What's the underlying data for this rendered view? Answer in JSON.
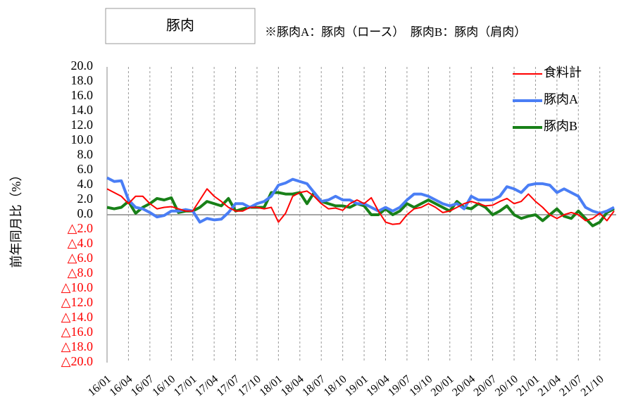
{
  "chart_data": {
    "type": "line",
    "title": "豚肉",
    "subtitle": "※豚肉A：豚肉（ロース）　豚肉B：豚肉（肩肉）",
    "y_label": "前年同月比（%）",
    "categories": [
      "16/01",
      null,
      null,
      "16/04",
      null,
      null,
      "16/07",
      null,
      null,
      "16/10",
      null,
      null,
      "17/01",
      null,
      null,
      "17/04",
      null,
      null,
      "17/07",
      null,
      null,
      "17/10",
      null,
      null,
      "18/01",
      null,
      null,
      "18/04",
      null,
      null,
      "18/07",
      null,
      null,
      "18/10",
      null,
      null,
      "19/01",
      null,
      null,
      "19/04",
      null,
      null,
      "19/07",
      null,
      null,
      "19/10",
      null,
      null,
      "20/01",
      null,
      null,
      "20/04",
      null,
      null,
      "20/07",
      null,
      null,
      "20/10",
      null,
      null,
      "21/01",
      null,
      null,
      "21/04",
      null,
      null,
      "21/07",
      null,
      null,
      "21/10",
      null,
      null
    ],
    "series": [
      {
        "name": "食料計",
        "color": "#ff0000",
        "width": 2,
        "values": [
          3.5,
          3.0,
          2.5,
          1.5,
          2.5,
          2.5,
          1.5,
          0.8,
          1.0,
          1.1,
          0.8,
          0.5,
          0.5,
          2.0,
          3.5,
          2.5,
          1.8,
          1.0,
          0.5,
          0.5,
          1.0,
          1.0,
          0.8,
          1.0,
          -1.0,
          0.2,
          2.5,
          3.0,
          3.2,
          2.5,
          1.5,
          0.8,
          0.9,
          0.6,
          1.5,
          2.0,
          1.5,
          2.3,
          0.5,
          -1.0,
          -1.3,
          -1.2,
          0.0,
          0.8,
          1.0,
          1.5,
          1.0,
          0.3,
          0.5,
          1.0,
          1.5,
          1.8,
          1.5,
          1.2,
          1.3,
          1.8,
          2.2,
          1.5,
          1.8,
          2.8,
          1.8,
          1.0,
          0.0,
          -0.5,
          0.0,
          0.3,
          0.0,
          -0.8,
          -0.5,
          0.2,
          -0.8,
          0.5
        ]
      },
      {
        "name": "豚肉A",
        "color": "#4a7ef5",
        "width": 4,
        "values": [
          5.0,
          4.5,
          4.6,
          2.0,
          1.0,
          0.8,
          0.3,
          -0.3,
          -0.1,
          0.5,
          0.5,
          0.7,
          0.5,
          -1.0,
          -0.5,
          -0.7,
          -0.6,
          0.3,
          1.5,
          1.5,
          1.0,
          1.5,
          1.8,
          2.5,
          4.0,
          4.3,
          4.8,
          4.5,
          4.2,
          3.0,
          1.8,
          2.0,
          2.5,
          2.0,
          2.0,
          1.5,
          1.5,
          1.0,
          0.5,
          1.0,
          0.5,
          1.0,
          2.0,
          2.8,
          2.8,
          2.5,
          2.0,
          1.5,
          1.2,
          1.5,
          0.8,
          2.5,
          2.0,
          2.0,
          2.0,
          2.5,
          3.8,
          3.5,
          3.0,
          4.0,
          4.2,
          4.2,
          4.0,
          3.0,
          3.5,
          3.0,
          2.5,
          1.0,
          0.5,
          0.2,
          0.5,
          1.0
        ]
      },
      {
        "name": "豚肉B",
        "color": "#188018",
        "width": 4,
        "values": [
          1.0,
          0.8,
          1.0,
          1.8,
          0.2,
          1.0,
          1.5,
          2.2,
          2.0,
          2.3,
          0.3,
          0.5,
          0.5,
          1.0,
          1.8,
          1.5,
          1.2,
          2.2,
          0.5,
          0.8,
          1.0,
          1.0,
          1.0,
          3.0,
          3.0,
          2.8,
          2.8,
          3.0,
          1.5,
          3.0,
          1.8,
          1.5,
          1.2,
          1.2,
          1.0,
          1.5,
          1.2,
          0.0,
          0.0,
          0.8,
          0.0,
          0.5,
          1.5,
          1.0,
          1.5,
          2.0,
          1.5,
          1.0,
          0.5,
          1.8,
          1.0,
          0.8,
          1.5,
          1.0,
          0.0,
          0.5,
          1.2,
          0.0,
          -0.5,
          -0.2,
          0.0,
          -0.8,
          0.0,
          0.8,
          -0.2,
          -0.5,
          0.5,
          -0.5,
          -1.5,
          -1.0,
          0.3,
          0.8
        ]
      }
    ],
    "ylim": [
      -20,
      20
    ],
    "yticks": [
      {
        "value": 20,
        "label": "20.0"
      },
      {
        "value": 18,
        "label": "18.0"
      },
      {
        "value": 16,
        "label": "16.0"
      },
      {
        "value": 14,
        "label": "14.0"
      },
      {
        "value": 12,
        "label": "12.0"
      },
      {
        "value": 10,
        "label": "10.0"
      },
      {
        "value": 8,
        "label": "8.0"
      },
      {
        "value": 6,
        "label": "6.0"
      },
      {
        "value": 4,
        "label": "4.0"
      },
      {
        "value": 2,
        "label": "2.0"
      },
      {
        "value": 0,
        "label": "0.0"
      },
      {
        "value": -2,
        "label": "△2.0"
      },
      {
        "value": -4,
        "label": "△4.0"
      },
      {
        "value": -6,
        "label": "△6.0"
      },
      {
        "value": -8,
        "label": "△8.0"
      },
      {
        "value": -10,
        "label": "△10.0"
      },
      {
        "value": -12,
        "label": "△12.0"
      },
      {
        "value": -14,
        "label": "△14.0"
      },
      {
        "value": -16,
        "label": "△16.0"
      },
      {
        "value": -18,
        "label": "△18.0"
      },
      {
        "value": -20,
        "label": "△20.0"
      }
    ],
    "negative_tick_color": "#ff0000",
    "legend": "top-right"
  }
}
